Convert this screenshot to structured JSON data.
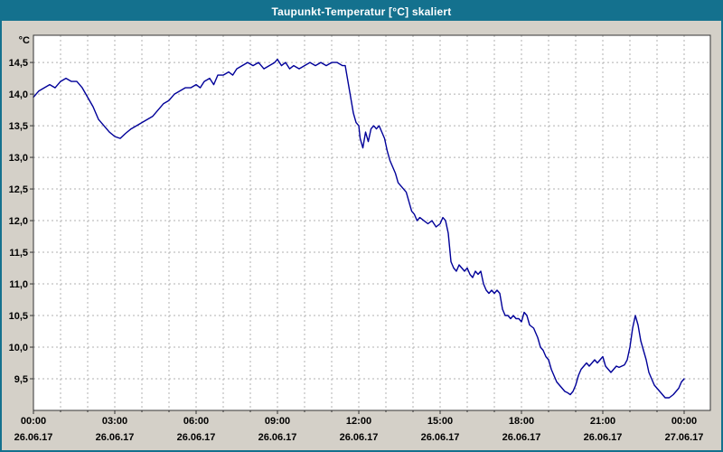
{
  "window": {
    "title": "Taupunkt-Temperatur [°C] skaliert",
    "titlebar_color": "#14718e",
    "body_color": "#d4d0c8"
  },
  "chart_data": {
    "type": "line",
    "title": "Taupunkt-Temperatur [°C] skaliert",
    "unit_label": "°C",
    "line_color": "#000099",
    "grid_color": "#b0b0b0",
    "plot_background": "#ffffff",
    "plot_border_color": "#333333",
    "legend_position": "none",
    "grid": true,
    "ylim": [
      9.0,
      14.93
    ],
    "xlim_hours": [
      0,
      24.97
    ],
    "y_ticks": [
      {
        "value": 14.5,
        "label": "14,5"
      },
      {
        "value": 14.0,
        "label": "14,0"
      },
      {
        "value": 13.5,
        "label": "13,5"
      },
      {
        "value": 13.0,
        "label": "13,0"
      },
      {
        "value": 12.5,
        "label": "12,5"
      },
      {
        "value": 12.0,
        "label": "12,0"
      },
      {
        "value": 11.5,
        "label": "11,5"
      },
      {
        "value": 11.0,
        "label": "11,0"
      },
      {
        "value": 10.5,
        "label": "10,5"
      },
      {
        "value": 10.0,
        "label": "10,0"
      },
      {
        "value": 9.5,
        "label": "9,5"
      }
    ],
    "x_ticks": [
      {
        "hour": 0,
        "time": "00:00",
        "date": "26.06.17"
      },
      {
        "hour": 3,
        "time": "03:00",
        "date": "26.06.17"
      },
      {
        "hour": 6,
        "time": "06:00",
        "date": "26.06.17"
      },
      {
        "hour": 9,
        "time": "09:00",
        "date": "26.06.17"
      },
      {
        "hour": 12,
        "time": "12:00",
        "date": "26.06.17"
      },
      {
        "hour": 15,
        "time": "15:00",
        "date": "26.06.17"
      },
      {
        "hour": 18,
        "time": "18:00",
        "date": "26.06.17"
      },
      {
        "hour": 21,
        "time": "21:00",
        "date": "26.06.17"
      },
      {
        "hour": 24,
        "time": "00:00",
        "date": "27.06.17"
      }
    ],
    "x_minor_step_hours": 1,
    "series": [
      {
        "name": "Taupunkt-Temperatur",
        "points": [
          [
            0,
            13.95
          ],
          [
            0.2,
            14.05
          ],
          [
            0.4,
            14.1
          ],
          [
            0.6,
            14.15
          ],
          [
            0.8,
            14.1
          ],
          [
            1.0,
            14.2
          ],
          [
            1.2,
            14.25
          ],
          [
            1.4,
            14.2
          ],
          [
            1.6,
            14.2
          ],
          [
            1.8,
            14.1
          ],
          [
            2.0,
            13.95
          ],
          [
            2.2,
            13.8
          ],
          [
            2.4,
            13.6
          ],
          [
            2.6,
            13.5
          ],
          [
            2.8,
            13.4
          ],
          [
            3.0,
            13.33
          ],
          [
            3.2,
            13.3
          ],
          [
            3.4,
            13.38
          ],
          [
            3.6,
            13.45
          ],
          [
            3.8,
            13.5
          ],
          [
            4.0,
            13.55
          ],
          [
            4.2,
            13.6
          ],
          [
            4.4,
            13.65
          ],
          [
            4.6,
            13.75
          ],
          [
            4.8,
            13.85
          ],
          [
            5.0,
            13.9
          ],
          [
            5.2,
            14.0
          ],
          [
            5.4,
            14.05
          ],
          [
            5.6,
            14.1
          ],
          [
            5.8,
            14.1
          ],
          [
            6.0,
            14.15
          ],
          [
            6.15,
            14.1
          ],
          [
            6.3,
            14.2
          ],
          [
            6.5,
            14.25
          ],
          [
            6.65,
            14.15
          ],
          [
            6.8,
            14.3
          ],
          [
            7.0,
            14.3
          ],
          [
            7.2,
            14.35
          ],
          [
            7.35,
            14.3
          ],
          [
            7.5,
            14.4
          ],
          [
            7.7,
            14.45
          ],
          [
            7.9,
            14.5
          ],
          [
            8.1,
            14.45
          ],
          [
            8.3,
            14.5
          ],
          [
            8.5,
            14.4
          ],
          [
            8.7,
            14.45
          ],
          [
            8.9,
            14.5
          ],
          [
            9.0,
            14.55
          ],
          [
            9.15,
            14.45
          ],
          [
            9.3,
            14.5
          ],
          [
            9.45,
            14.4
          ],
          [
            9.6,
            14.45
          ],
          [
            9.8,
            14.4
          ],
          [
            10.0,
            14.45
          ],
          [
            10.2,
            14.5
          ],
          [
            10.4,
            14.45
          ],
          [
            10.6,
            14.5
          ],
          [
            10.8,
            14.45
          ],
          [
            11.0,
            14.5
          ],
          [
            11.2,
            14.5
          ],
          [
            11.4,
            14.45
          ],
          [
            11.5,
            14.45
          ],
          [
            11.6,
            14.2
          ],
          [
            11.7,
            13.95
          ],
          [
            11.8,
            13.7
          ],
          [
            11.9,
            13.55
          ],
          [
            12.0,
            13.5
          ],
          [
            12.05,
            13.3
          ],
          [
            12.15,
            13.15
          ],
          [
            12.25,
            13.4
          ],
          [
            12.35,
            13.25
          ],
          [
            12.45,
            13.45
          ],
          [
            12.55,
            13.5
          ],
          [
            12.65,
            13.45
          ],
          [
            12.75,
            13.5
          ],
          [
            12.85,
            13.4
          ],
          [
            12.95,
            13.3
          ],
          [
            13.05,
            13.1
          ],
          [
            13.15,
            12.95
          ],
          [
            13.25,
            12.85
          ],
          [
            13.35,
            12.75
          ],
          [
            13.45,
            12.6
          ],
          [
            13.55,
            12.55
          ],
          [
            13.65,
            12.5
          ],
          [
            13.75,
            12.45
          ],
          [
            13.85,
            12.3
          ],
          [
            13.95,
            12.15
          ],
          [
            14.05,
            12.1
          ],
          [
            14.15,
            12.0
          ],
          [
            14.25,
            12.05
          ],
          [
            14.4,
            12.0
          ],
          [
            14.55,
            11.95
          ],
          [
            14.7,
            12.0
          ],
          [
            14.85,
            11.9
          ],
          [
            15.0,
            11.95
          ],
          [
            15.1,
            12.05
          ],
          [
            15.2,
            12.0
          ],
          [
            15.3,
            11.8
          ],
          [
            15.4,
            11.35
          ],
          [
            15.5,
            11.25
          ],
          [
            15.6,
            11.2
          ],
          [
            15.7,
            11.3
          ],
          [
            15.8,
            11.25
          ],
          [
            15.9,
            11.2
          ],
          [
            16.0,
            11.25
          ],
          [
            16.1,
            11.15
          ],
          [
            16.2,
            11.1
          ],
          [
            16.3,
            11.2
          ],
          [
            16.4,
            11.15
          ],
          [
            16.5,
            11.2
          ],
          [
            16.6,
            11.0
          ],
          [
            16.7,
            10.9
          ],
          [
            16.8,
            10.85
          ],
          [
            16.9,
            10.9
          ],
          [
            17.0,
            10.85
          ],
          [
            17.1,
            10.9
          ],
          [
            17.2,
            10.85
          ],
          [
            17.3,
            10.6
          ],
          [
            17.4,
            10.5
          ],
          [
            17.5,
            10.5
          ],
          [
            17.6,
            10.45
          ],
          [
            17.7,
            10.5
          ],
          [
            17.8,
            10.45
          ],
          [
            17.9,
            10.45
          ],
          [
            18.0,
            10.4
          ],
          [
            18.1,
            10.55
          ],
          [
            18.2,
            10.5
          ],
          [
            18.3,
            10.35
          ],
          [
            18.45,
            10.3
          ],
          [
            18.6,
            10.15
          ],
          [
            18.7,
            10.0
          ],
          [
            18.8,
            9.95
          ],
          [
            18.9,
            9.85
          ],
          [
            19.0,
            9.8
          ],
          [
            19.1,
            9.65
          ],
          [
            19.2,
            9.55
          ],
          [
            19.3,
            9.45
          ],
          [
            19.4,
            9.4
          ],
          [
            19.5,
            9.35
          ],
          [
            19.6,
            9.3
          ],
          [
            19.7,
            9.28
          ],
          [
            19.8,
            9.25
          ],
          [
            19.9,
            9.3
          ],
          [
            20.0,
            9.4
          ],
          [
            20.1,
            9.55
          ],
          [
            20.2,
            9.65
          ],
          [
            20.3,
            9.7
          ],
          [
            20.4,
            9.75
          ],
          [
            20.5,
            9.7
          ],
          [
            20.6,
            9.75
          ],
          [
            20.7,
            9.8
          ],
          [
            20.8,
            9.75
          ],
          [
            20.9,
            9.8
          ],
          [
            21.0,
            9.85
          ],
          [
            21.1,
            9.7
          ],
          [
            21.2,
            9.65
          ],
          [
            21.3,
            9.6
          ],
          [
            21.4,
            9.65
          ],
          [
            21.5,
            9.7
          ],
          [
            21.6,
            9.68
          ],
          [
            21.7,
            9.7
          ],
          [
            21.8,
            9.72
          ],
          [
            21.9,
            9.8
          ],
          [
            22.0,
            10.0
          ],
          [
            22.1,
            10.3
          ],
          [
            22.2,
            10.5
          ],
          [
            22.3,
            10.35
          ],
          [
            22.4,
            10.1
          ],
          [
            22.5,
            9.95
          ],
          [
            22.6,
            9.8
          ],
          [
            22.7,
            9.6
          ],
          [
            22.8,
            9.5
          ],
          [
            22.9,
            9.4
          ],
          [
            23.0,
            9.35
          ],
          [
            23.1,
            9.3
          ],
          [
            23.2,
            9.25
          ],
          [
            23.3,
            9.2
          ],
          [
            23.45,
            9.2
          ],
          [
            23.6,
            9.25
          ],
          [
            23.7,
            9.3
          ],
          [
            23.8,
            9.35
          ],
          [
            23.9,
            9.45
          ],
          [
            24.0,
            9.5
          ]
        ]
      }
    ]
  }
}
